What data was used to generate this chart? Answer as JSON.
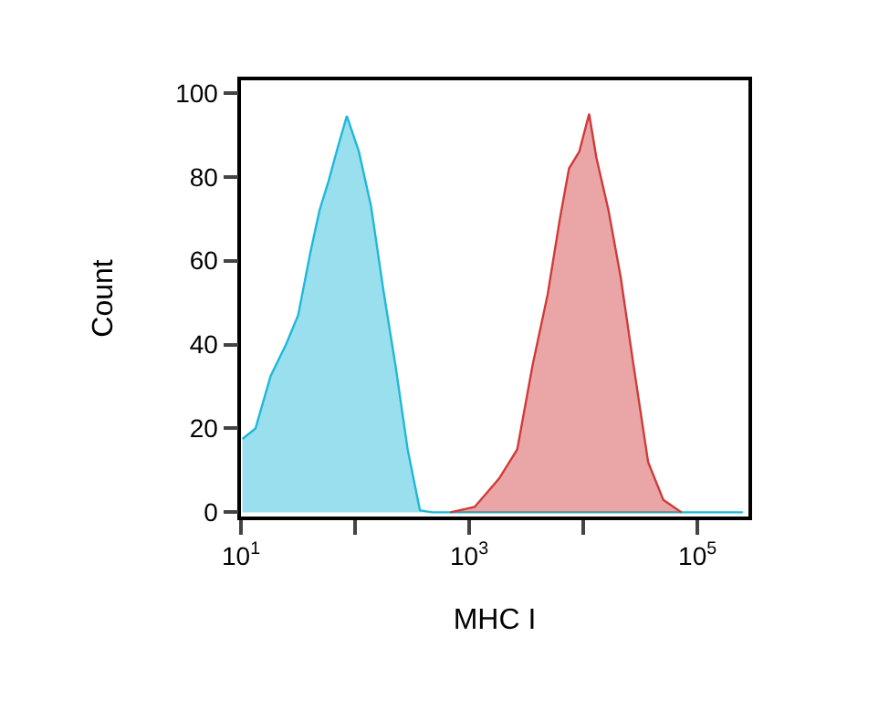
{
  "chart_data": {
    "type": "area",
    "xlabel": "MHC I",
    "ylabel": "Count",
    "log": "x",
    "legend": false,
    "marker": "none",
    "xlim": [
      10,
      280000
    ],
    "ylim": [
      -1,
      103
    ],
    "xticks": [
      {
        "value": 10,
        "label": "10$^{1}$"
      },
      {
        "value": 100,
        "label": null
      },
      {
        "value": 1000,
        "label": "10$^{3}$"
      },
      {
        "value": 10000,
        "label": null
      },
      {
        "value": 100000,
        "label": "10$^{5}$"
      }
    ],
    "yticks": [
      0,
      20,
      40,
      60,
      80,
      100
    ],
    "series": [
      {
        "color": "#1fb8d8",
        "x": [
          10.3,
          13.4,
          18.2,
          24.8,
          31.7,
          40.6,
          48.8,
          58.6,
          70.5,
          84.7,
          108,
          138,
          177,
          226,
          289,
          370,
          473,
          250000
        ],
        "values": [
          17.5,
          20,
          32.5,
          40,
          47,
          62,
          72,
          79,
          87,
          94.5,
          86,
          73,
          53,
          35,
          15,
          0.5,
          0,
          0
        ]
      },
      {
        "color": "#d03a3a",
        "x": [
          684,
          1117,
          1824,
          2636,
          3589,
          4875,
          6237,
          7499,
          9225,
          11250,
          13030,
          16630,
          21280,
          27230,
          36980,
          50230,
          72600
        ],
        "values": [
          0,
          1.3,
          8,
          15,
          35,
          52,
          70,
          82,
          86,
          95,
          84.5,
          72,
          56,
          36,
          12,
          3,
          0
        ]
      }
    ]
  }
}
